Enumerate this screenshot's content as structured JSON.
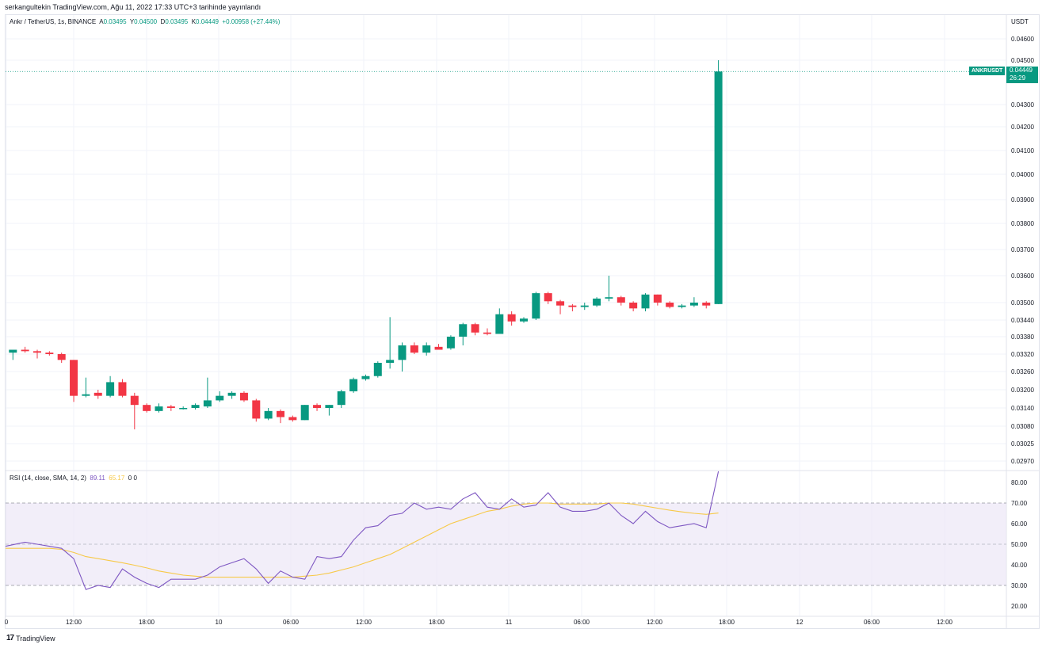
{
  "published_by": "serkangultekin TradingView.com, Ağu 11, 2022 17:33 UTC+3 tarihinde yayınlandı",
  "header": {
    "symbol": "Ankr / TetherUS, 1s, BINANCE",
    "open_label": "A",
    "open": "0.03495",
    "high_label": "Y",
    "high": "0.04500",
    "low_label": "D",
    "low": "0.03495",
    "close_label": "K",
    "close": "0.04449",
    "change": "+0.00958 (+27.44%)"
  },
  "price_unit": "USDT",
  "last_price": {
    "symbol": "ANKRUSDT",
    "price": "0.04449",
    "countdown": "26:29"
  },
  "rsi_header": {
    "label": "RSI (14, close, SMA, 14, 2)",
    "rsi": "89.11",
    "sma": "65.17",
    "extra": "0 0"
  },
  "footer": {
    "brand": "TradingView",
    "logo": "17"
  },
  "colors": {
    "up": "#089981",
    "down": "#f23645",
    "rsi": "#7e57c2",
    "rsi_sma": "#f7c948",
    "band": "#ede7f6"
  },
  "chart_data": [
    {
      "type": "candlestick",
      "title": "Ankr / TetherUS, 1s, BINANCE",
      "ylabel": "USDT",
      "y_ticks": [
        "0.04600",
        "0.04500",
        "0.04300",
        "0.04200",
        "0.04100",
        "0.04000",
        "0.03900",
        "0.03800",
        "0.03700",
        "0.03600",
        "0.03500",
        "0.03440",
        "0.03380",
        "0.03320",
        "0.03260",
        "0.03200",
        "0.03140",
        "0.03080",
        "0.03025",
        "0.02970"
      ],
      "x_ticks": [
        "0",
        "12:00",
        "18:00",
        "10",
        "06:00",
        "12:00",
        "18:00",
        "11",
        "06:00",
        "12:00",
        "18:00",
        "12",
        "06:00",
        "12:00"
      ],
      "candles": [
        {
          "o": 0.03325,
          "h": 0.03335,
          "l": 0.033,
          "c": 0.03335
        },
        {
          "o": 0.03335,
          "h": 0.03345,
          "l": 0.03325,
          "c": 0.0333
        },
        {
          "o": 0.0333,
          "h": 0.03335,
          "l": 0.03305,
          "c": 0.03325
        },
        {
          "o": 0.03325,
          "h": 0.0333,
          "l": 0.03315,
          "c": 0.0332
        },
        {
          "o": 0.0332,
          "h": 0.03325,
          "l": 0.0329,
          "c": 0.033
        },
        {
          "o": 0.033,
          "h": 0.033,
          "l": 0.0316,
          "c": 0.0318
        },
        {
          "o": 0.0318,
          "h": 0.0324,
          "l": 0.03175,
          "c": 0.03185
        },
        {
          "o": 0.0319,
          "h": 0.032,
          "l": 0.0317,
          "c": 0.0318
        },
        {
          "o": 0.0318,
          "h": 0.03245,
          "l": 0.03175,
          "c": 0.03225
        },
        {
          "o": 0.03225,
          "h": 0.03235,
          "l": 0.03175,
          "c": 0.0318
        },
        {
          "o": 0.0318,
          "h": 0.0319,
          "l": 0.0307,
          "c": 0.0315
        },
        {
          "o": 0.0315,
          "h": 0.03155,
          "l": 0.03125,
          "c": 0.0313
        },
        {
          "o": 0.0313,
          "h": 0.03155,
          "l": 0.03125,
          "c": 0.03145
        },
        {
          "o": 0.03145,
          "h": 0.0315,
          "l": 0.0313,
          "c": 0.0314
        },
        {
          "o": 0.0314,
          "h": 0.03145,
          "l": 0.03135,
          "c": 0.0314
        },
        {
          "o": 0.0314,
          "h": 0.03155,
          "l": 0.03135,
          "c": 0.0315
        },
        {
          "o": 0.03145,
          "h": 0.0324,
          "l": 0.0314,
          "c": 0.03165
        },
        {
          "o": 0.03165,
          "h": 0.03195,
          "l": 0.0316,
          "c": 0.0318
        },
        {
          "o": 0.0318,
          "h": 0.03195,
          "l": 0.0317,
          "c": 0.0319
        },
        {
          "o": 0.0319,
          "h": 0.03195,
          "l": 0.0316,
          "c": 0.03165
        },
        {
          "o": 0.03165,
          "h": 0.0317,
          "l": 0.03095,
          "c": 0.03105
        },
        {
          "o": 0.03105,
          "h": 0.0314,
          "l": 0.031,
          "c": 0.0313
        },
        {
          "o": 0.0313,
          "h": 0.03135,
          "l": 0.0309,
          "c": 0.0311
        },
        {
          "o": 0.0311,
          "h": 0.03115,
          "l": 0.03095,
          "c": 0.031
        },
        {
          "o": 0.031,
          "h": 0.0315,
          "l": 0.031,
          "c": 0.0315
        },
        {
          "o": 0.0315,
          "h": 0.03155,
          "l": 0.0313,
          "c": 0.0314
        },
        {
          "o": 0.0314,
          "h": 0.0315,
          "l": 0.03115,
          "c": 0.0315
        },
        {
          "o": 0.0315,
          "h": 0.032,
          "l": 0.0314,
          "c": 0.03195
        },
        {
          "o": 0.03195,
          "h": 0.0324,
          "l": 0.0319,
          "c": 0.03235
        },
        {
          "o": 0.03235,
          "h": 0.0325,
          "l": 0.0323,
          "c": 0.03245
        },
        {
          "o": 0.03245,
          "h": 0.03295,
          "l": 0.0324,
          "c": 0.0329
        },
        {
          "o": 0.0329,
          "h": 0.0345,
          "l": 0.0327,
          "c": 0.033
        },
        {
          "o": 0.033,
          "h": 0.0336,
          "l": 0.0326,
          "c": 0.0335
        },
        {
          "o": 0.0335,
          "h": 0.0336,
          "l": 0.0332,
          "c": 0.03325
        },
        {
          "o": 0.03325,
          "h": 0.0336,
          "l": 0.03315,
          "c": 0.0335
        },
        {
          "o": 0.03345,
          "h": 0.03355,
          "l": 0.0334,
          "c": 0.03335
        },
        {
          "o": 0.0334,
          "h": 0.03385,
          "l": 0.03335,
          "c": 0.0338
        },
        {
          "o": 0.0338,
          "h": 0.0343,
          "l": 0.0335,
          "c": 0.03425
        },
        {
          "o": 0.03425,
          "h": 0.0343,
          "l": 0.03385,
          "c": 0.03395
        },
        {
          "o": 0.03395,
          "h": 0.0341,
          "l": 0.03385,
          "c": 0.0339
        },
        {
          "o": 0.0339,
          "h": 0.0348,
          "l": 0.0339,
          "c": 0.0346
        },
        {
          "o": 0.0346,
          "h": 0.0347,
          "l": 0.0342,
          "c": 0.03435
        },
        {
          "o": 0.03435,
          "h": 0.0345,
          "l": 0.0343,
          "c": 0.03445
        },
        {
          "o": 0.03445,
          "h": 0.0354,
          "l": 0.0344,
          "c": 0.03535
        },
        {
          "o": 0.03535,
          "h": 0.0354,
          "l": 0.03495,
          "c": 0.03505
        },
        {
          "o": 0.03505,
          "h": 0.0351,
          "l": 0.0346,
          "c": 0.0349
        },
        {
          "o": 0.0349,
          "h": 0.03495,
          "l": 0.0347,
          "c": 0.03485
        },
        {
          "o": 0.03485,
          "h": 0.035,
          "l": 0.03475,
          "c": 0.0349
        },
        {
          "o": 0.0349,
          "h": 0.0352,
          "l": 0.03485,
          "c": 0.03515
        },
        {
          "o": 0.03515,
          "h": 0.036,
          "l": 0.03505,
          "c": 0.0352
        },
        {
          "o": 0.0352,
          "h": 0.03525,
          "l": 0.0349,
          "c": 0.035
        },
        {
          "o": 0.035,
          "h": 0.03505,
          "l": 0.0347,
          "c": 0.0348
        },
        {
          "o": 0.0348,
          "h": 0.03535,
          "l": 0.0347,
          "c": 0.0353
        },
        {
          "o": 0.0353,
          "h": 0.0353,
          "l": 0.0349,
          "c": 0.035
        },
        {
          "o": 0.035,
          "h": 0.03505,
          "l": 0.0348,
          "c": 0.03485
        },
        {
          "o": 0.03485,
          "h": 0.03495,
          "l": 0.0348,
          "c": 0.0349
        },
        {
          "o": 0.0349,
          "h": 0.0352,
          "l": 0.03485,
          "c": 0.035
        },
        {
          "o": 0.035,
          "h": 0.03505,
          "l": 0.0348,
          "c": 0.0349
        },
        {
          "o": 0.03495,
          "h": 0.045,
          "l": 0.03495,
          "c": 0.04449
        }
      ]
    },
    {
      "type": "line",
      "title": "RSI (14, close, SMA, 14, 2)",
      "y_ticks": [
        "80.00",
        "70.00",
        "60.00",
        "50.00",
        "40.00",
        "30.00",
        "20.00"
      ],
      "bands": [
        30,
        50,
        70
      ],
      "series": [
        {
          "name": "RSI",
          "values": [
            49,
            51,
            50,
            49,
            48,
            43,
            28,
            30,
            29,
            38,
            34,
            31,
            29,
            33,
            33,
            33,
            35,
            39,
            41,
            43,
            38,
            31,
            37,
            34,
            33,
            44,
            43,
            44,
            52,
            58,
            59,
            64,
            65,
            70,
            67,
            68,
            67,
            72,
            75,
            68,
            67,
            72,
            68,
            69,
            75,
            68,
            66,
            66,
            67,
            70,
            64,
            60,
            66,
            61,
            58,
            59,
            60,
            58,
            89
          ]
        },
        {
          "name": "SMA",
          "values": [
            48,
            48,
            48,
            48,
            47.5,
            46,
            44,
            43,
            42,
            41,
            39.8,
            38.5,
            37,
            36,
            35,
            34.5,
            34,
            34,
            34,
            34,
            34,
            34,
            34,
            34,
            34.5,
            35,
            36,
            37.5,
            39,
            41,
            43,
            45,
            48,
            51,
            54,
            57,
            60,
            62,
            64,
            66,
            67,
            68.5,
            69.5,
            70,
            70,
            69.5,
            69.5,
            69.5,
            69.5,
            70,
            70,
            69.5,
            68.5,
            67.5,
            66.5,
            65.7,
            65,
            64.5,
            65.17
          ]
        }
      ]
    }
  ]
}
